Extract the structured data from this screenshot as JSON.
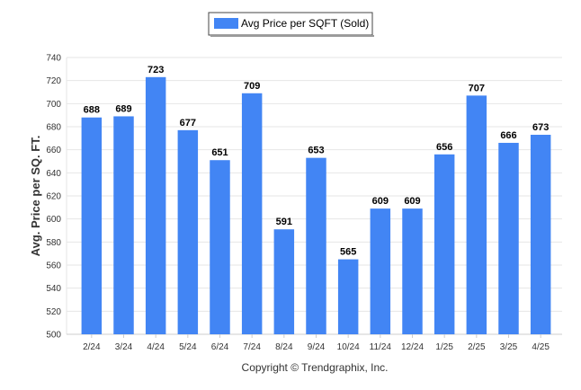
{
  "chart_data": {
    "type": "bar",
    "categories": [
      "2/24",
      "3/24",
      "4/24",
      "5/24",
      "6/24",
      "7/24",
      "8/24",
      "9/24",
      "10/24",
      "11/24",
      "12/24",
      "1/25",
      "2/25",
      "3/25",
      "4/25"
    ],
    "series": [
      {
        "name": "Avg Price per SQFT (Sold)",
        "values": [
          688,
          689,
          723,
          677,
          651,
          709,
          591,
          653,
          565,
          609,
          609,
          656,
          707,
          666,
          673
        ],
        "color": "#4285f4"
      }
    ],
    "ylabel": "Avg. Price per SQ. FT.",
    "xlabel": "",
    "ylim": [
      500,
      740
    ],
    "yticks": [
      500,
      520,
      540,
      560,
      580,
      600,
      620,
      640,
      660,
      680,
      700,
      720,
      740
    ],
    "grid": true,
    "legend": "top-center",
    "footer": "Copyright © Trendgraphix, Inc."
  }
}
